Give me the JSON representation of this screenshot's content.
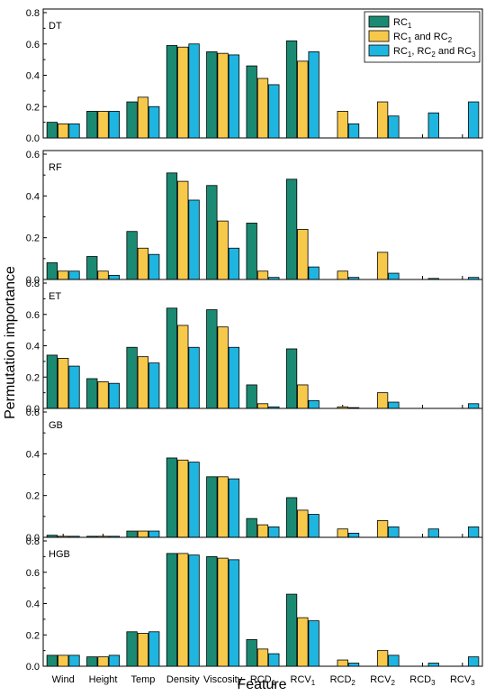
{
  "chart_data": {
    "type": "bar",
    "xlabel": "Feature",
    "ylabel": "Permutation importance",
    "categories": [
      {
        "base": "Wind",
        "sub": ""
      },
      {
        "base": "Height",
        "sub": ""
      },
      {
        "base": "Temp",
        "sub": ""
      },
      {
        "base": "Density",
        "sub": ""
      },
      {
        "base": "Viscosity",
        "sub": ""
      },
      {
        "base": "RCD",
        "sub": "1"
      },
      {
        "base": "RCV",
        "sub": "1"
      },
      {
        "base": "RCD",
        "sub": "2"
      },
      {
        "base": "RCV",
        "sub": "2"
      },
      {
        "base": "RCD",
        "sub": "3"
      },
      {
        "base": "RCV",
        "sub": "3"
      }
    ],
    "series_legend": [
      {
        "parts": [
          {
            "t": "RC"
          },
          {
            "t": "1",
            "sub": true
          }
        ]
      },
      {
        "parts": [
          {
            "t": "RC"
          },
          {
            "t": "1",
            "sub": true
          },
          {
            "t": " and RC"
          },
          {
            "t": "2",
            "sub": true
          }
        ]
      },
      {
        "parts": [
          {
            "t": "RC"
          },
          {
            "t": "1",
            "sub": true
          },
          {
            "t": ", RC"
          },
          {
            "t": "2",
            "sub": true
          },
          {
            "t": " and RC"
          },
          {
            "t": "3",
            "sub": true
          }
        ]
      }
    ],
    "colors": [
      "#1b8a72",
      "#f7c94b",
      "#1eb6e0"
    ],
    "legend_position": "top-right",
    "panels": [
      {
        "label": "DT",
        "ylim": [
          0,
          0.8
        ],
        "yticks": [
          "0.0",
          "0.2",
          "0.4",
          "0.6",
          "0.8"
        ],
        "series": [
          [
            0.1,
            0.17,
            0.23,
            0.59,
            0.55,
            0.46,
            0.62,
            0,
            0,
            0,
            0
          ],
          [
            0.09,
            0.17,
            0.26,
            0.58,
            0.54,
            0.38,
            0.49,
            0.17,
            0.23,
            0,
            0
          ],
          [
            0.09,
            0.17,
            0.2,
            0.6,
            0.53,
            0.34,
            0.55,
            0.09,
            0.14,
            0.16,
            0.23
          ]
        ]
      },
      {
        "label": "RF",
        "ylim": [
          0,
          0.6
        ],
        "yticks": [
          "0.0",
          "0.2",
          "0.4",
          "0.6"
        ],
        "series": [
          [
            0.08,
            0.11,
            0.23,
            0.51,
            0.45,
            0.27,
            0.48,
            0,
            0,
            0,
            0
          ],
          [
            0.04,
            0.04,
            0.15,
            0.47,
            0.28,
            0.04,
            0.24,
            0.04,
            0.13,
            0,
            0
          ],
          [
            0.04,
            0.02,
            0.12,
            0.38,
            0.15,
            0.01,
            0.06,
            0.01,
            0.03,
            0.005,
            0.01
          ]
        ]
      },
      {
        "label": "ET",
        "ylim": [
          0,
          0.8
        ],
        "yticks": [
          "0.0",
          "0.2",
          "0.4",
          "0.6",
          "0.8"
        ],
        "series": [
          [
            0.34,
            0.19,
            0.39,
            0.64,
            0.63,
            0.15,
            0.38,
            0,
            0,
            0,
            0
          ],
          [
            0.32,
            0.17,
            0.33,
            0.53,
            0.52,
            0.03,
            0.15,
            0.01,
            0.1,
            0,
            0
          ],
          [
            0.27,
            0.16,
            0.29,
            0.39,
            0.39,
            0.01,
            0.05,
            0.005,
            0.04,
            0,
            0.03
          ]
        ]
      },
      {
        "label": "GB",
        "ylim": [
          0,
          0.6
        ],
        "yticks": [
          "0.0",
          "0.2",
          "0.4",
          "0.6"
        ],
        "series": [
          [
            0.01,
            0.005,
            0.03,
            0.38,
            0.29,
            0.09,
            0.19,
            0,
            0,
            0,
            0
          ],
          [
            0.005,
            0.005,
            0.03,
            0.37,
            0.29,
            0.06,
            0.13,
            0.04,
            0.08,
            0,
            0
          ],
          [
            0.005,
            0.005,
            0.03,
            0.36,
            0.28,
            0.05,
            0.11,
            0.02,
            0.05,
            0.04,
            0.05
          ]
        ]
      },
      {
        "label": "HGB",
        "ylim": [
          0,
          0.8
        ],
        "yticks": [
          "0.0",
          "0.2",
          "0.4",
          "0.6",
          "0.8"
        ],
        "series": [
          [
            0.07,
            0.06,
            0.22,
            0.72,
            0.7,
            0.17,
            0.46,
            0,
            0,
            0,
            0
          ],
          [
            0.07,
            0.06,
            0.21,
            0.72,
            0.69,
            0.11,
            0.31,
            0.04,
            0.1,
            0,
            0
          ],
          [
            0.07,
            0.07,
            0.22,
            0.71,
            0.68,
            0.08,
            0.29,
            0.02,
            0.07,
            0.02,
            0.06
          ]
        ]
      }
    ]
  }
}
